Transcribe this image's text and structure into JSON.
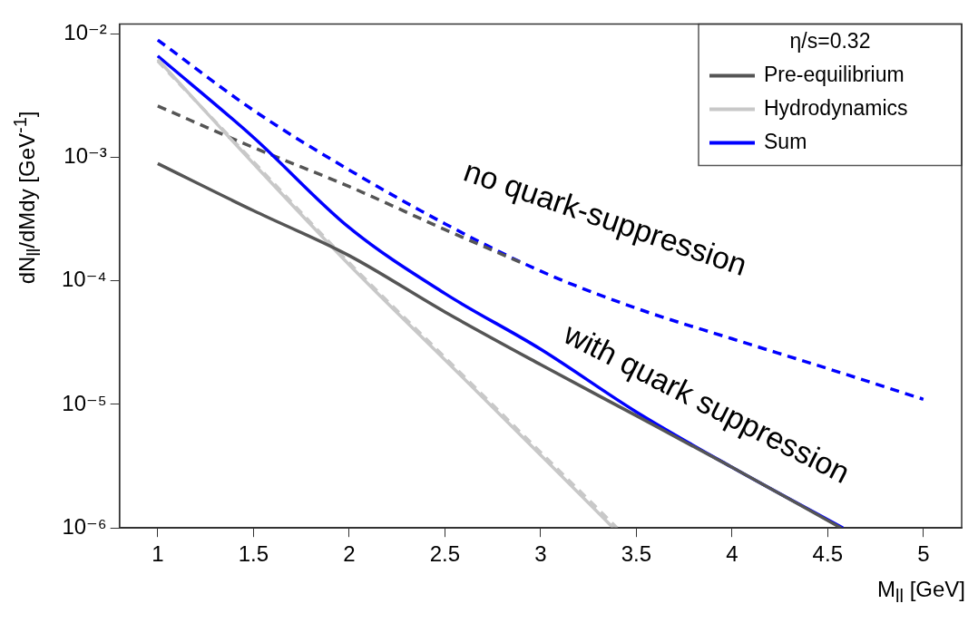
{
  "chart_data": {
    "type": "line",
    "xlabel": "M$_{ll}$ [GeV]",
    "ylabel": "dN$_{ll}$/dMdy [GeV$^{-1}$]",
    "legend_title": "η/s=0.32",
    "legend": "top right",
    "log": "y",
    "grid": false,
    "marker": "none",
    "xlim": [
      0.8,
      5.2
    ],
    "xticks": [
      1,
      1.5,
      2,
      2.5,
      3,
      3.5,
      4,
      4.5,
      5
    ],
    "ylim": [
      1e-06,
      0.012
    ],
    "yticks": [
      {
        "value": 1e-06,
        "label": "10⁻⁶"
      },
      {
        "value": 1e-05,
        "label": "10⁻⁵"
      },
      {
        "value": 0.0001,
        "label": "10⁻⁴"
      },
      {
        "value": 0.001,
        "label": "10⁻³"
      },
      {
        "value": 0.01,
        "label": "10⁻²"
      }
    ],
    "annotations": [
      "no quark-suppression",
      "with quark suppression"
    ],
    "series": [
      {
        "color": "#555555",
        "line_style": "dashed",
        "x": [
          1,
          1.5,
          2,
          2.5,
          2.9
        ],
        "values": [
          0.0026,
          0.0012,
          0.00058,
          0.00026,
          0.00014
        ]
      },
      {
        "color": "#c8c8c8",
        "line_style": "dashed",
        "x": [
          1,
          1.5,
          2,
          2.5,
          3,
          3.4
        ],
        "values": [
          0.006,
          0.00092,
          0.00014,
          2.4e-05,
          4.1e-06,
          1e-06
        ]
      },
      {
        "color": "#0000ff",
        "line_style": "dashed",
        "x": [
          1,
          1.5,
          2,
          2.5,
          3,
          3.5,
          4,
          4.5,
          5
        ],
        "values": [
          0.0089,
          0.0024,
          0.00079,
          0.00029,
          0.00012,
          6e-05,
          3.4e-05,
          1.95e-05,
          1.1e-05
        ]
      },
      {
        "name": "Pre-equilibrium",
        "color": "#555555",
        "line_style": "solid",
        "x": [
          1,
          1.5,
          2,
          2.5,
          3,
          3.5,
          4,
          4.57
        ],
        "values": [
          0.00089,
          0.00037,
          0.00016,
          5.6e-05,
          2.1e-05,
          8.1e-06,
          3.1e-06,
          1e-06
        ]
      },
      {
        "name": "Hydrodynamics",
        "color": "#c8c8c8",
        "line_style": "solid",
        "x": [
          1,
          1.5,
          2,
          2.5,
          3,
          3.38
        ],
        "values": [
          0.0062,
          0.00089,
          0.000135,
          2.3e-05,
          3.9e-06,
          1e-06
        ]
      },
      {
        "name": "Sum",
        "color": "#0000ff",
        "line_style": "solid",
        "x": [
          1,
          1.5,
          2,
          2.5,
          3,
          3.5,
          4,
          4.58
        ],
        "values": [
          0.0066,
          0.00145,
          0.00027,
          7.9e-05,
          2.8e-05,
          8.7e-06,
          3.1e-06,
          1e-06
        ]
      }
    ]
  }
}
